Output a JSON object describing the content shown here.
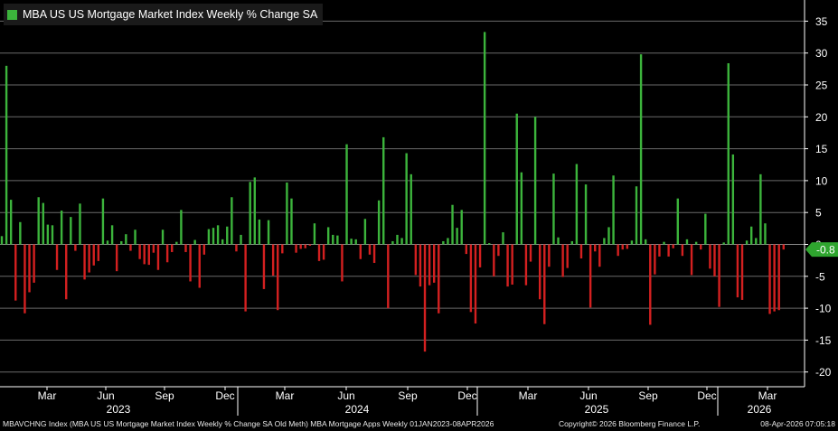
{
  "chart_data": {
    "type": "bar",
    "title": "MBA US US Mortgage Market Index Weekly % Change SA",
    "legend_position": "top-left",
    "positive_color": "#3cb43c",
    "negative_color": "#d42020",
    "ylim": [
      -22,
      38
    ],
    "y_ticks": [
      35,
      30,
      25,
      20,
      15,
      10,
      5,
      0,
      -5,
      -10,
      -15,
      -20
    ],
    "grid": true,
    "last_value": -0.8,
    "last_value_label": "-0.8",
    "x_month_labels": [
      "Mar",
      "Jun",
      "Sep",
      "Dec",
      "Mar",
      "Jun",
      "Sep",
      "Dec",
      "Mar",
      "Jun",
      "Sep",
      "Dec",
      "Mar"
    ],
    "x_year_labels": [
      "2023",
      "2024",
      "2025",
      "2026"
    ],
    "values": [
      1.3,
      28.0,
      7.0,
      -8.8,
      3.5,
      -10.8,
      -7.5,
      -6.0,
      7.4,
      6.5,
      3.1,
      3.0,
      -4.0,
      5.3,
      -8.6,
      4.3,
      -1.0,
      6.4,
      -5.5,
      -4.4,
      -3.3,
      -2.6,
      7.2,
      0.6,
      3.0,
      -4.2,
      0.5,
      1.6,
      -1.0,
      2.3,
      -2.3,
      -3.1,
      -3.2,
      -1.3,
      -4.0,
      2.3,
      -2.8,
      -1.2,
      0.4,
      5.4,
      -1.2,
      -5.8,
      0.7,
      -6.8,
      -1.6,
      2.4,
      2.6,
      3.0,
      0.8,
      2.8,
      7.4,
      -1.1,
      1.5,
      -10.5,
      9.8,
      10.5,
      3.9,
      -7.0,
      3.8,
      -4.9,
      -10.3,
      -1.4,
      9.7,
      7.2,
      -1.3,
      -0.7,
      -0.6,
      -0.2,
      3.3,
      -2.6,
      -2.4,
      2.7,
      1.5,
      1.4,
      -5.8,
      15.7,
      0.9,
      0.8,
      -2.3,
      4.0,
      -1.6,
      -2.9,
      6.9,
      16.8,
      -10.0,
      0.5,
      1.5,
      1.0,
      14.3,
      11.0,
      -4.8,
      -6.6,
      -16.8,
      -6.4,
      -6.0,
      -10.8,
      0.5,
      1.0,
      6.2,
      2.6,
      5.4,
      -1.5,
      -10.6,
      -12.4,
      -3.6,
      33.3,
      0.2,
      -5.0,
      -1.8,
      1.9,
      -6.6,
      -6.3,
      20.5,
      11.3,
      -6.4,
      -2.7,
      20.0,
      -8.6,
      -12.5,
      -3.5,
      11.1,
      1.1,
      -5.1,
      -3.7,
      0.5,
      12.6,
      -2.2,
      9.4,
      -9.9,
      -1.1,
      -3.5,
      1.0,
      2.7,
      10.8,
      -1.8,
      -0.8,
      -0.7,
      0.6,
      9.1,
      29.8,
      0.8,
      -12.6,
      -4.7,
      -1.9,
      0.4,
      -1.9,
      -0.6,
      7.2,
      -1.8,
      0.8,
      -4.8,
      0.4,
      -0.8,
      4.8,
      -3.8,
      -5.0,
      -9.8,
      0.3,
      28.4,
      14.1,
      -8.3,
      -8.7,
      0.6,
      2.8,
      1.0,
      11.0,
      3.3,
      -10.9,
      -10.5,
      -10.3,
      -0.8
    ]
  },
  "footer": {
    "left": "MBAVCHNG Index (MBA US US Mortgage Market Index Weekly % Change SA Old Meth) MBA Mortgage Apps Weekly 01JAN2023-08APR2026",
    "center": "Copyright© 2026 Bloomberg Finance L.P.",
    "right": "08-Apr-2026 07:05:18"
  }
}
